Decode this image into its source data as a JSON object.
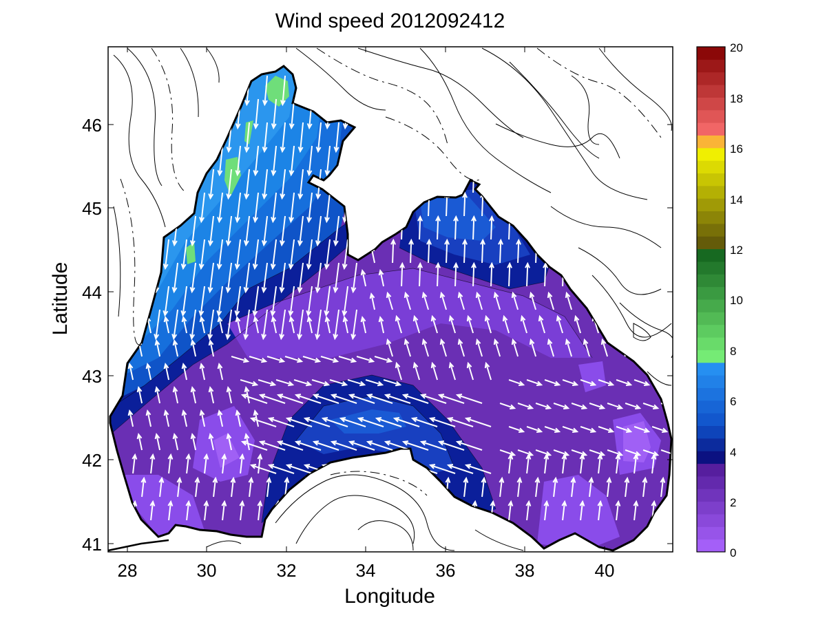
{
  "title": "Wind speed 2012092412",
  "xlabel": "Longitude",
  "ylabel": "Latitude",
  "x_ticks": [
    "28",
    "30",
    "32",
    "34",
    "36",
    "38",
    "40"
  ],
  "y_ticks": [
    "41",
    "42",
    "43",
    "44",
    "45",
    "46"
  ],
  "colorbar_ticks": [
    "0",
    "2",
    "4",
    "6",
    "8",
    "10",
    "12",
    "14",
    "16",
    "18",
    "20"
  ],
  "chart_data": {
    "type": "heatmap",
    "title": "Wind speed 2012092412",
    "xlabel": "Longitude",
    "ylabel": "Latitude",
    "xlim": [
      27.5,
      41.7
    ],
    "ylim": [
      40.9,
      46.9
    ],
    "colorbar_range": [
      0,
      20
    ],
    "colorbar_colors": {
      "0-4": "#9b59f5",
      "4-8": "#1e7fe8",
      "8-12": "#5fe07a",
      "12-16": "#9a9000",
      "16-20": "#ff6b6b"
    },
    "map": "Black Sea",
    "vectors": "white wind arrows"
  }
}
